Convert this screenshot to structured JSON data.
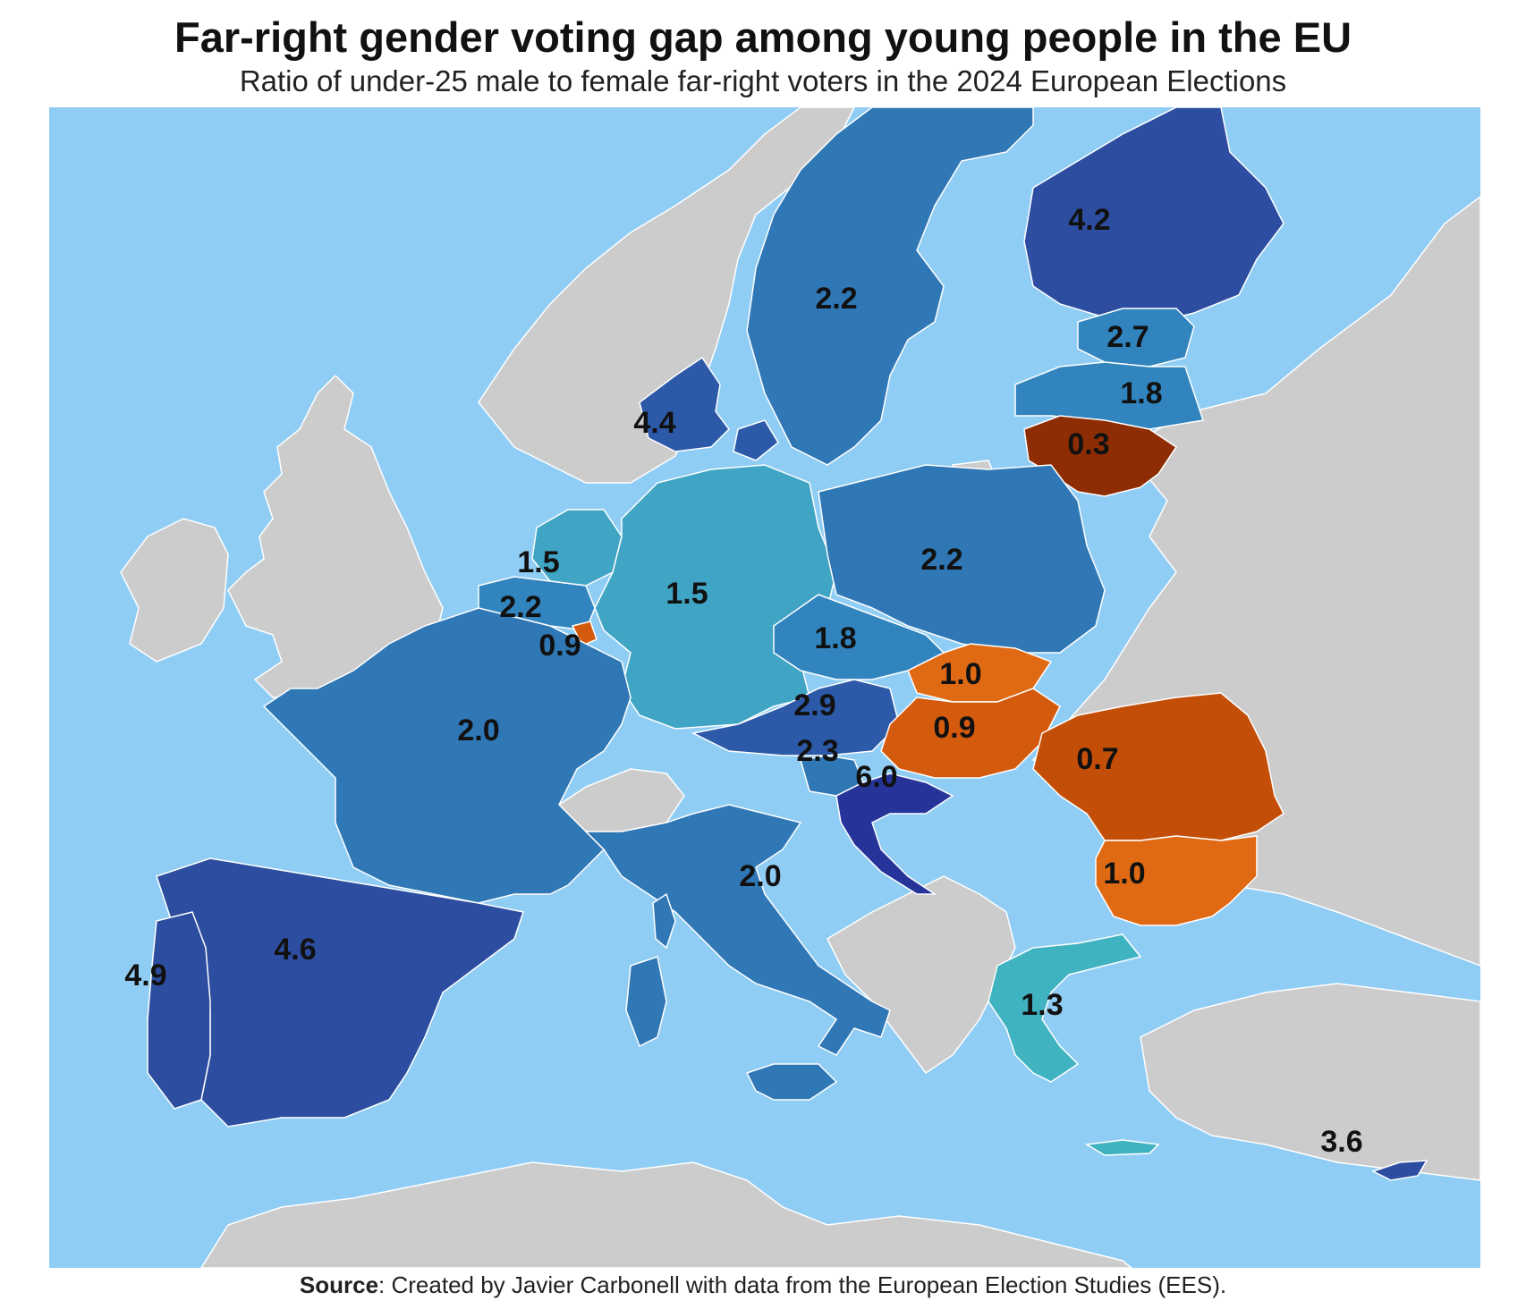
{
  "title": "Far-right gender voting gap among young people in the EU",
  "subtitle": "Ratio of under-25 male to female far-right voters in the 2024 European Elections",
  "source": {
    "label": "Source",
    "text": ": Created by Javier Carbonell with data from the European Election Studies (EES)."
  },
  "colors": {
    "sea": "#90cdf4",
    "non_eu_land": "#cccccc",
    "border": "#ffffff",
    "scale": {
      "0.3": "#8e2d04",
      "0.7": "#c34e08",
      "0.9": "#d45a0e",
      "1.0": "#e06a14",
      "1.3": "#3fb3c0",
      "1.5": "#40a4c4",
      "1.8": "#3184be",
      "2.0": "#2f77b5",
      "2.9": "#2c5aa8",
      "4.2": "#2d4ea0",
      "6.0": "#26349a"
    }
  },
  "map_values": [
    {
      "id": "finland",
      "value": "4.2"
    },
    {
      "id": "sweden",
      "value": "2.2"
    },
    {
      "id": "estonia",
      "value": "2.7"
    },
    {
      "id": "latvia",
      "value": "1.8"
    },
    {
      "id": "lithuania",
      "value": "0.3"
    },
    {
      "id": "denmark",
      "value": "4.4"
    },
    {
      "id": "netherlands",
      "value": "1.5"
    },
    {
      "id": "germany",
      "value": "1.5"
    },
    {
      "id": "poland",
      "value": "2.2"
    },
    {
      "id": "belgium",
      "value": "2.2"
    },
    {
      "id": "luxembourg",
      "value": "0.9"
    },
    {
      "id": "czechia",
      "value": "1.8"
    },
    {
      "id": "slovakia",
      "value": "1.0"
    },
    {
      "id": "austria",
      "value": "2.9"
    },
    {
      "id": "hungary",
      "value": "0.9"
    },
    {
      "id": "france",
      "value": "2.0"
    },
    {
      "id": "slovenia",
      "value": "2.3"
    },
    {
      "id": "croatia",
      "value": "6.0"
    },
    {
      "id": "romania",
      "value": "0.7"
    },
    {
      "id": "italy",
      "value": "2.0"
    },
    {
      "id": "bulgaria",
      "value": "1.0"
    },
    {
      "id": "spain",
      "value": "4.6"
    },
    {
      "id": "portugal",
      "value": "4.9"
    },
    {
      "id": "greece",
      "value": "1.3"
    },
    {
      "id": "cyprus",
      "value": "3.6"
    }
  ]
}
